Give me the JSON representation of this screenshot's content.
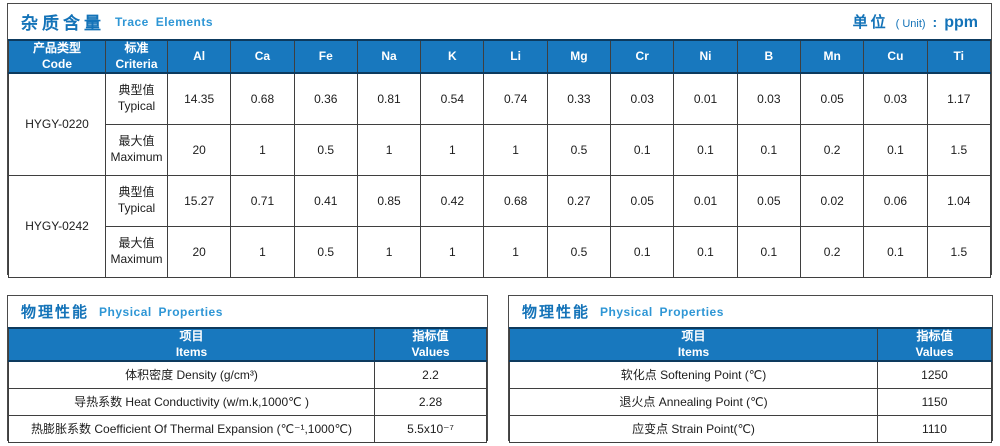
{
  "colors": {
    "header_blue": "#1878be",
    "header_border_navy": "#0d3a5e",
    "title_blue": "#1473b8",
    "subtitle_blue": "#2e96d5",
    "grid_line": "#3f3f3f"
  },
  "trace": {
    "title_zh": "杂质含量",
    "title_en": "Trace Elements",
    "unit_label_zh": "单位",
    "unit_label_en": "( Unit)",
    "unit_colon": ":",
    "unit_value": "ppm",
    "col_product_zh": "产品类型",
    "col_product_en": "Code",
    "col_criteria_zh": "标准",
    "col_criteria_en": "Criteria",
    "elements": [
      "Al",
      "Ca",
      "Fe",
      "Na",
      "K",
      "Li",
      "Mg",
      "Cr",
      "Ni",
      "B",
      "Mn",
      "Cu",
      "Ti"
    ],
    "products": [
      {
        "code": "HYGY-0220",
        "rows": [
          {
            "label_zh": "典型值",
            "label_en": "Typical",
            "values": [
              "14.35",
              "0.68",
              "0.36",
              "0.81",
              "0.54",
              "0.74",
              "0.33",
              "0.03",
              "0.01",
              "0.03",
              "0.05",
              "0.03",
              "1.17"
            ]
          },
          {
            "label_zh": "最大值",
            "label_en": "Maximum",
            "values": [
              "20",
              "1",
              "0.5",
              "1",
              "1",
              "1",
              "0.5",
              "0.1",
              "0.1",
              "0.1",
              "0.2",
              "0.1",
              "1.5"
            ]
          }
        ]
      },
      {
        "code": "HYGY-0242",
        "rows": [
          {
            "label_zh": "典型值",
            "label_en": "Typical",
            "values": [
              "15.27",
              "0.71",
              "0.41",
              "0.85",
              "0.42",
              "0.68",
              "0.27",
              "0.05",
              "0.01",
              "0.05",
              "0.02",
              "0.06",
              "1.04"
            ]
          },
          {
            "label_zh": "最大值",
            "label_en": "Maximum",
            "values": [
              "20",
              "1",
              "0.5",
              "1",
              "1",
              "1",
              "0.5",
              "0.1",
              "0.1",
              "0.1",
              "0.2",
              "0.1",
              "1.5"
            ]
          }
        ]
      }
    ]
  },
  "physical_left": {
    "title_zh": "物理性能",
    "title_en": "Physical Properties",
    "col_items_zh": "项目",
    "col_items_en": "Items",
    "col_values_zh": "指标值",
    "col_values_en": "Values",
    "rows": [
      {
        "item": "体积密度 Density (g/cm³)",
        "value": "2.2"
      },
      {
        "item": "导热系数 Heat Conductivity (w/m.k,1000℃ )",
        "value": "2.28"
      },
      {
        "item": "热膨胀系数 Coefficient Of Thermal Expansion (℃⁻¹,1000℃)",
        "value": "5.5x10⁻⁷"
      }
    ]
  },
  "physical_right": {
    "title_zh": "物理性能",
    "title_en": "Physical Properties",
    "col_items_zh": "项目",
    "col_items_en": "Items",
    "col_values_zh": "指标值",
    "col_values_en": "Values",
    "rows": [
      {
        "item": "软化点 Softening Point (℃)",
        "value": "1250"
      },
      {
        "item": "退火点 Annealing Point (℃)",
        "value": "1150"
      },
      {
        "item": "应变点 Strain Point(℃)",
        "value": "1110"
      }
    ]
  }
}
